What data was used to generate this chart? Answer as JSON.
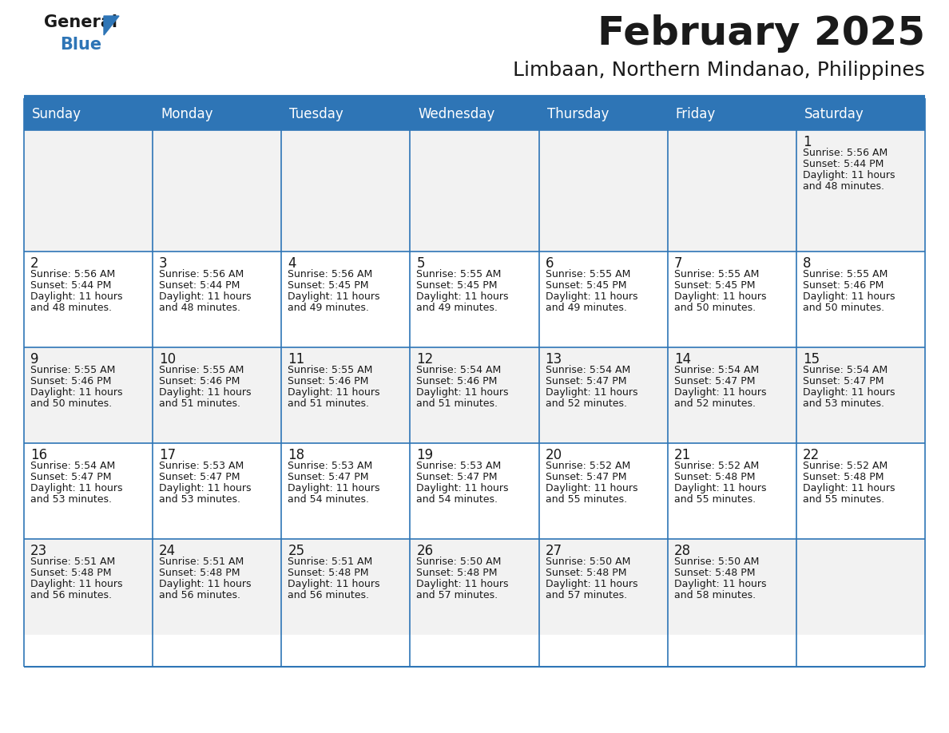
{
  "title": "February 2025",
  "subtitle": "Limbaan, Northern Mindanao, Philippines",
  "header_bg": "#2E75B6",
  "header_text": "#FFFFFF",
  "cell_bg_odd": "#F2F2F2",
  "cell_bg_even": "#FFFFFF",
  "day_number_color": "#1a1a1a",
  "info_text_color": "#1a1a1a",
  "border_color": "#2E75B6",
  "days_of_week": [
    "Sunday",
    "Monday",
    "Tuesday",
    "Wednesday",
    "Thursday",
    "Friday",
    "Saturday"
  ],
  "weeks": [
    [
      {
        "day": null,
        "sunrise": null,
        "sunset": null,
        "daylight_hours": null,
        "daylight_mins": null
      },
      {
        "day": null,
        "sunrise": null,
        "sunset": null,
        "daylight_hours": null,
        "daylight_mins": null
      },
      {
        "day": null,
        "sunrise": null,
        "sunset": null,
        "daylight_hours": null,
        "daylight_mins": null
      },
      {
        "day": null,
        "sunrise": null,
        "sunset": null,
        "daylight_hours": null,
        "daylight_mins": null
      },
      {
        "day": null,
        "sunrise": null,
        "sunset": null,
        "daylight_hours": null,
        "daylight_mins": null
      },
      {
        "day": null,
        "sunrise": null,
        "sunset": null,
        "daylight_hours": null,
        "daylight_mins": null
      },
      {
        "day": 1,
        "sunrise": "5:56 AM",
        "sunset": "5:44 PM",
        "daylight_hours": "11 hours",
        "daylight_mins": "48 minutes."
      }
    ],
    [
      {
        "day": 2,
        "sunrise": "5:56 AM",
        "sunset": "5:44 PM",
        "daylight_hours": "11 hours",
        "daylight_mins": "48 minutes."
      },
      {
        "day": 3,
        "sunrise": "5:56 AM",
        "sunset": "5:44 PM",
        "daylight_hours": "11 hours",
        "daylight_mins": "48 minutes."
      },
      {
        "day": 4,
        "sunrise": "5:56 AM",
        "sunset": "5:45 PM",
        "daylight_hours": "11 hours",
        "daylight_mins": "49 minutes."
      },
      {
        "day": 5,
        "sunrise": "5:55 AM",
        "sunset": "5:45 PM",
        "daylight_hours": "11 hours",
        "daylight_mins": "49 minutes."
      },
      {
        "day": 6,
        "sunrise": "5:55 AM",
        "sunset": "5:45 PM",
        "daylight_hours": "11 hours",
        "daylight_mins": "49 minutes."
      },
      {
        "day": 7,
        "sunrise": "5:55 AM",
        "sunset": "5:45 PM",
        "daylight_hours": "11 hours",
        "daylight_mins": "50 minutes."
      },
      {
        "day": 8,
        "sunrise": "5:55 AM",
        "sunset": "5:46 PM",
        "daylight_hours": "11 hours",
        "daylight_mins": "50 minutes."
      }
    ],
    [
      {
        "day": 9,
        "sunrise": "5:55 AM",
        "sunset": "5:46 PM",
        "daylight_hours": "11 hours",
        "daylight_mins": "50 minutes."
      },
      {
        "day": 10,
        "sunrise": "5:55 AM",
        "sunset": "5:46 PM",
        "daylight_hours": "11 hours",
        "daylight_mins": "51 minutes."
      },
      {
        "day": 11,
        "sunrise": "5:55 AM",
        "sunset": "5:46 PM",
        "daylight_hours": "11 hours",
        "daylight_mins": "51 minutes."
      },
      {
        "day": 12,
        "sunrise": "5:54 AM",
        "sunset": "5:46 PM",
        "daylight_hours": "11 hours",
        "daylight_mins": "51 minutes."
      },
      {
        "day": 13,
        "sunrise": "5:54 AM",
        "sunset": "5:47 PM",
        "daylight_hours": "11 hours",
        "daylight_mins": "52 minutes."
      },
      {
        "day": 14,
        "sunrise": "5:54 AM",
        "sunset": "5:47 PM",
        "daylight_hours": "11 hours",
        "daylight_mins": "52 minutes."
      },
      {
        "day": 15,
        "sunrise": "5:54 AM",
        "sunset": "5:47 PM",
        "daylight_hours": "11 hours",
        "daylight_mins": "53 minutes."
      }
    ],
    [
      {
        "day": 16,
        "sunrise": "5:54 AM",
        "sunset": "5:47 PM",
        "daylight_hours": "11 hours",
        "daylight_mins": "53 minutes."
      },
      {
        "day": 17,
        "sunrise": "5:53 AM",
        "sunset": "5:47 PM",
        "daylight_hours": "11 hours",
        "daylight_mins": "53 minutes."
      },
      {
        "day": 18,
        "sunrise": "5:53 AM",
        "sunset": "5:47 PM",
        "daylight_hours": "11 hours",
        "daylight_mins": "54 minutes."
      },
      {
        "day": 19,
        "sunrise": "5:53 AM",
        "sunset": "5:47 PM",
        "daylight_hours": "11 hours",
        "daylight_mins": "54 minutes."
      },
      {
        "day": 20,
        "sunrise": "5:52 AM",
        "sunset": "5:47 PM",
        "daylight_hours": "11 hours",
        "daylight_mins": "55 minutes."
      },
      {
        "day": 21,
        "sunrise": "5:52 AM",
        "sunset": "5:48 PM",
        "daylight_hours": "11 hours",
        "daylight_mins": "55 minutes."
      },
      {
        "day": 22,
        "sunrise": "5:52 AM",
        "sunset": "5:48 PM",
        "daylight_hours": "11 hours",
        "daylight_mins": "55 minutes."
      }
    ],
    [
      {
        "day": 23,
        "sunrise": "5:51 AM",
        "sunset": "5:48 PM",
        "daylight_hours": "11 hours",
        "daylight_mins": "56 minutes."
      },
      {
        "day": 24,
        "sunrise": "5:51 AM",
        "sunset": "5:48 PM",
        "daylight_hours": "11 hours",
        "daylight_mins": "56 minutes."
      },
      {
        "day": 25,
        "sunrise": "5:51 AM",
        "sunset": "5:48 PM",
        "daylight_hours": "11 hours",
        "daylight_mins": "56 minutes."
      },
      {
        "day": 26,
        "sunrise": "5:50 AM",
        "sunset": "5:48 PM",
        "daylight_hours": "11 hours",
        "daylight_mins": "57 minutes."
      },
      {
        "day": 27,
        "sunrise": "5:50 AM",
        "sunset": "5:48 PM",
        "daylight_hours": "11 hours",
        "daylight_mins": "57 minutes."
      },
      {
        "day": 28,
        "sunrise": "5:50 AM",
        "sunset": "5:48 PM",
        "daylight_hours": "11 hours",
        "daylight_mins": "58 minutes."
      },
      {
        "day": null,
        "sunrise": null,
        "sunset": null,
        "daylight_hours": null,
        "daylight_mins": null
      }
    ]
  ],
  "logo_text1": "General",
  "logo_text2": "Blue",
  "logo_color1": "#1a1a1a",
  "logo_color2": "#2E75B6",
  "logo_triangle_color": "#2E75B6",
  "title_fontsize": 36,
  "subtitle_fontsize": 18,
  "header_fontsize": 12,
  "day_number_fontsize": 12,
  "cell_text_fontsize": 9
}
